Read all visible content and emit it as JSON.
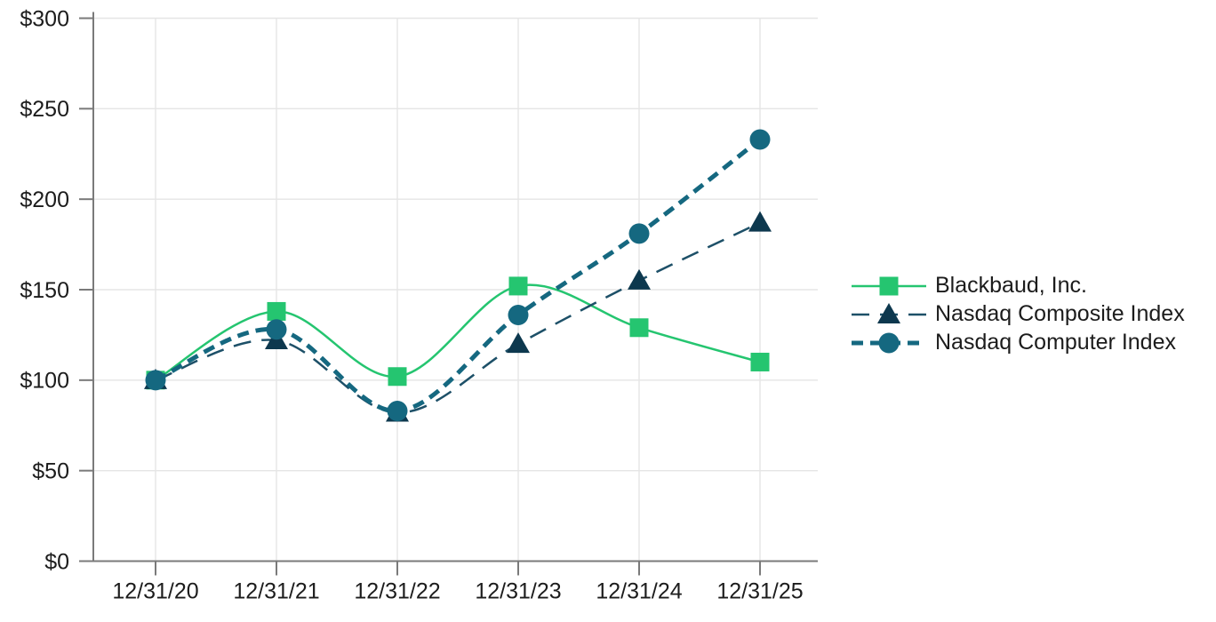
{
  "chart_data": {
    "type": "line",
    "title": "",
    "categories": [
      "12/31/20",
      "12/31/21",
      "12/31/22",
      "12/31/23",
      "12/31/24",
      "12/31/25"
    ],
    "y_ticks": [
      "$0",
      "$50",
      "$100",
      "$150",
      "$200",
      "$250",
      "$300"
    ],
    "y_tick_values": [
      0,
      50,
      100,
      150,
      200,
      250,
      300
    ],
    "ylim": [
      0,
      300
    ],
    "grid": true,
    "legend_position": "right",
    "series": [
      {
        "name": "Blackbaud, Inc.",
        "values": [
          100,
          138,
          102,
          152,
          129,
          110
        ],
        "color": "#25c570",
        "marker_color": "#25c570",
        "marker": "square",
        "line_style": "solid",
        "dash": "",
        "line_width": 2.5
      },
      {
        "name": "Nasdaq Composite Index",
        "values": [
          100,
          122,
          82,
          120,
          155,
          187
        ],
        "color": "#1d5068",
        "marker_color": "#0d384e",
        "marker": "triangle",
        "line_style": "dashed",
        "dash": "20 12",
        "line_width": 2.5
      },
      {
        "name": "Nasdaq Computer Index",
        "values": [
          100,
          128,
          83,
          136,
          181,
          233
        ],
        "color": "#156880",
        "marker_color": "#156880",
        "marker": "circle",
        "line_style": "dashed-thick",
        "dash": "13 8",
        "line_width": 5
      }
    ],
    "colors": {
      "axis": "#7a7a7a",
      "grid": "#e5e5e5",
      "text": "#1c1c1c",
      "background": "#ffffff"
    }
  }
}
